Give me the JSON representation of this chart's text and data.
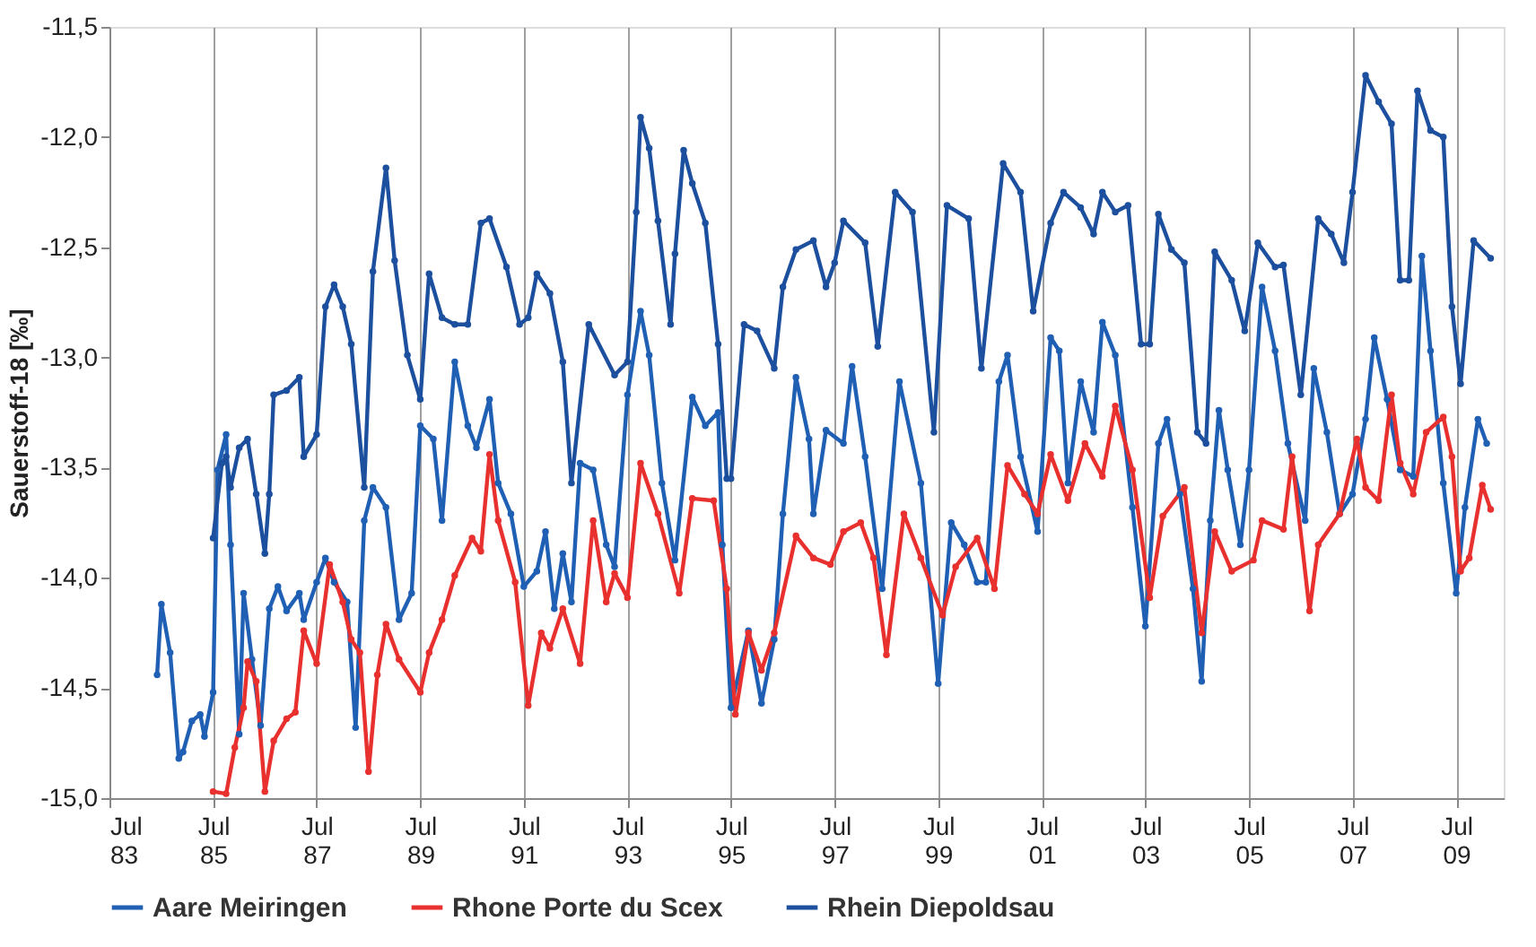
{
  "chart_data": {
    "type": "line",
    "ylabel": "Sauerstoff-18 [‰]",
    "xlim": [
      "1983-07",
      "2010-06"
    ],
    "ylim": [
      -15.0,
      -11.5
    ],
    "xticks": [
      {
        "value": "1983-07",
        "label": "Jul 83"
      },
      {
        "value": "1985-07",
        "label": "Jul 85"
      },
      {
        "value": "1987-07",
        "label": "Jul 87"
      },
      {
        "value": "1989-07",
        "label": "Jul 89"
      },
      {
        "value": "1991-07",
        "label": "Jul 91"
      },
      {
        "value": "1993-07",
        "label": "Jul 93"
      },
      {
        "value": "1995-07",
        "label": "Jul 95"
      },
      {
        "value": "1997-07",
        "label": "Jul 97"
      },
      {
        "value": "1999-07",
        "label": "Jul 99"
      },
      {
        "value": "2001-07",
        "label": "Jul 01"
      },
      {
        "value": "2003-07",
        "label": "Jul 03"
      },
      {
        "value": "2005-07",
        "label": "Jul 05"
      },
      {
        "value": "2007-07",
        "label": "Jul 07"
      },
      {
        "value": "2009-07",
        "label": "Jul 09"
      }
    ],
    "yticks": [
      {
        "value": -15.0,
        "label": "-15,0"
      },
      {
        "value": -14.5,
        "label": "-14,5"
      },
      {
        "value": -14.0,
        "label": "-14,0"
      },
      {
        "value": -13.5,
        "label": "-13,5"
      },
      {
        "value": -13.0,
        "label": "-13,0"
      },
      {
        "value": -12.5,
        "label": "-12,5"
      },
      {
        "value": -12.0,
        "label": "-12,0"
      },
      {
        "value": -11.5,
        "label": "-11,5"
      }
    ],
    "grid": "x",
    "legend": "bottom",
    "marker": "circle",
    "line_style": "solid",
    "series": [
      {
        "name": "Aare Meiringen",
        "color": "#1f5fb4",
        "x": [
          "1984-06",
          "1984-07",
          "1984-09",
          "1984-11",
          "1984-12",
          "1985-02",
          "1985-04",
          "1985-05",
          "1985-07",
          "1985-08",
          "1985-10",
          "1985-11",
          "1986-01",
          "1986-02",
          "1986-04",
          "1986-06",
          "1986-08",
          "1986-10",
          "1986-12",
          "1987-03",
          "1987-04",
          "1987-07",
          "1987-09",
          "1987-11",
          "1988-02",
          "1988-04",
          "1988-06",
          "1988-08",
          "1988-11",
          "1989-02",
          "1989-05",
          "1989-07",
          "1989-10",
          "1989-12",
          "1990-03",
          "1990-06",
          "1990-08",
          "1990-11",
          "1991-01",
          "1991-04",
          "1991-07",
          "1991-10",
          "1991-12",
          "1992-02",
          "1992-04",
          "1992-06",
          "1992-08",
          "1992-11",
          "1993-02",
          "1993-04",
          "1993-07",
          "1993-10",
          "1993-12",
          "1994-03",
          "1994-06",
          "1994-10",
          "1995-01",
          "1995-04",
          "1995-05",
          "1995-07",
          "1995-11",
          "1996-02",
          "1996-05",
          "1996-07",
          "1996-10",
          "1997-01",
          "1997-02",
          "1997-05",
          "1997-09",
          "1997-11",
          "1998-02",
          "1998-06",
          "1998-10",
          "1999-03",
          "1999-07",
          "1999-10",
          "2000-01",
          "2000-04",
          "2000-06",
          "2000-09",
          "2000-11",
          "2001-02",
          "2001-06",
          "2001-09",
          "2001-11",
          "2002-01",
          "2002-04",
          "2002-07",
          "2002-09",
          "2002-12",
          "2003-04",
          "2003-07",
          "2003-10",
          "2003-12",
          "2004-03",
          "2004-06",
          "2004-08",
          "2004-10",
          "2004-12",
          "2005-02",
          "2005-05",
          "2005-07",
          "2005-10",
          "2006-01",
          "2006-04",
          "2006-08",
          "2006-10",
          "2007-01",
          "2007-04",
          "2007-07",
          "2007-10",
          "2007-12",
          "2008-03",
          "2008-06",
          "2008-09",
          "2008-11",
          "2009-01",
          "2009-04",
          "2009-07",
          "2009-09",
          "2009-12",
          "2010-02"
        ],
        "values": [
          -14.44,
          -14.12,
          -14.34,
          -14.82,
          -14.79,
          -14.65,
          -14.62,
          -14.72,
          -14.52,
          -13.51,
          -13.35,
          -13.85,
          -14.71,
          -14.07,
          -14.37,
          -14.67,
          -14.14,
          -14.04,
          -14.15,
          -14.07,
          -14.19,
          -14.02,
          -13.91,
          -14.02,
          -14.11,
          -14.68,
          -13.74,
          -13.59,
          -13.68,
          -14.19,
          -14.07,
          -13.31,
          -13.37,
          -13.74,
          -13.02,
          -13.31,
          -13.41,
          -13.19,
          -13.57,
          -13.71,
          -14.04,
          -13.97,
          -13.79,
          -14.14,
          -13.89,
          -14.11,
          -13.48,
          -13.51,
          -13.85,
          -13.95,
          -13.17,
          -12.79,
          -12.99,
          -13.57,
          -13.92,
          -13.18,
          -13.31,
          -13.25,
          -13.85,
          -14.59,
          -14.24,
          -14.57,
          -14.28,
          -13.71,
          -13.09,
          -13.37,
          -13.71,
          -13.33,
          -13.39,
          -13.04,
          -13.45,
          -14.05,
          -13.11,
          -13.57,
          -14.48,
          -13.75,
          -13.85,
          -14.02,
          -14.02,
          -13.11,
          -12.99,
          -13.45,
          -13.79,
          -12.91,
          -12.97,
          -13.57,
          -13.11,
          -13.34,
          -12.84,
          -12.99,
          -13.68,
          -14.22,
          -13.39,
          -13.28,
          -13.62,
          -14.05,
          -14.47,
          -13.74,
          -13.24,
          -13.51,
          -13.85,
          -13.51,
          -12.68,
          -12.97,
          -13.39,
          -13.74,
          -13.05,
          -13.34,
          -13.71,
          -13.62,
          -13.28,
          -12.91,
          -13.19,
          -13.51,
          -13.54,
          -12.54,
          -12.97,
          -13.57,
          -14.07,
          -13.68,
          -13.28,
          -13.39
        ]
      },
      {
        "name": "Rhone Porte du Scex",
        "color": "#e8302e",
        "x": [
          "1985-07",
          "1985-10",
          "1985-12",
          "1986-02",
          "1986-03",
          "1986-05",
          "1986-07",
          "1986-09",
          "1986-12",
          "1987-02",
          "1987-04",
          "1987-07",
          "1987-10",
          "1988-01",
          "1988-03",
          "1988-05",
          "1988-07",
          "1988-09",
          "1988-11",
          "1989-02",
          "1989-07",
          "1989-09",
          "1989-12",
          "1990-03",
          "1990-07",
          "1990-09",
          "1990-11",
          "1991-01",
          "1991-05",
          "1991-08",
          "1991-11",
          "1992-01",
          "1992-04",
          "1992-08",
          "1992-11",
          "1993-02",
          "1993-04",
          "1993-07",
          "1993-10",
          "1994-02",
          "1994-07",
          "1994-10",
          "1995-03",
          "1995-06",
          "1995-08",
          "1995-11",
          "1996-02",
          "1996-05",
          "1996-10",
          "1997-02",
          "1997-06",
          "1997-09",
          "1998-01",
          "1998-04",
          "1998-07",
          "1998-11",
          "1999-03",
          "1999-08",
          "1999-11",
          "2000-04",
          "2000-08",
          "2000-11",
          "2001-03",
          "2001-06",
          "2001-09",
          "2002-01",
          "2002-05",
          "2002-09",
          "2002-12",
          "2003-04",
          "2003-08",
          "2003-11",
          "2004-04",
          "2004-08",
          "2004-11",
          "2005-03",
          "2005-08",
          "2005-10",
          "2006-03",
          "2006-05",
          "2006-09",
          "2006-11",
          "2007-04",
          "2007-08",
          "2007-10",
          "2008-01",
          "2008-04",
          "2008-06",
          "2008-09",
          "2008-12",
          "2009-04",
          "2009-06",
          "2009-08",
          "2009-10",
          "2010-01",
          "2010-03"
        ],
        "values": [
          -14.97,
          -14.98,
          -14.77,
          -14.59,
          -14.38,
          -14.47,
          -14.97,
          -14.74,
          -14.64,
          -14.61,
          -14.24,
          -14.39,
          -13.94,
          -14.11,
          -14.28,
          -14.34,
          -14.88,
          -14.44,
          -14.21,
          -14.37,
          -14.52,
          -14.34,
          -14.19,
          -13.99,
          -13.82,
          -13.88,
          -13.44,
          -13.74,
          -14.02,
          -14.58,
          -14.25,
          -14.32,
          -14.14,
          -14.39,
          -13.74,
          -14.11,
          -13.98,
          -14.09,
          -13.48,
          -13.71,
          -14.07,
          -13.64,
          -13.65,
          -14.05,
          -14.62,
          -14.25,
          -14.42,
          -14.25,
          -13.81,
          -13.91,
          -13.94,
          -13.79,
          -13.75,
          -13.91,
          -14.35,
          -13.71,
          -13.91,
          -14.17,
          -13.95,
          -13.82,
          -14.05,
          -13.49,
          -13.62,
          -13.71,
          -13.44,
          -13.65,
          -13.39,
          -13.54,
          -13.22,
          -13.51,
          -14.09,
          -13.72,
          -13.59,
          -14.25,
          -13.79,
          -13.97,
          -13.92,
          -13.74,
          -13.78,
          -13.45,
          -14.15,
          -13.85,
          -13.71,
          -13.37,
          -13.59,
          -13.65,
          -13.17,
          -13.48,
          -13.62,
          -13.34,
          -13.27,
          -13.45,
          -13.97,
          -13.91,
          -13.58,
          -13.69
        ]
      },
      {
        "name": "Rhein Diepoldsau",
        "color": "#1c4f9e",
        "x": [
          "1985-07",
          "1985-09",
          "1985-10",
          "1985-11",
          "1986-01",
          "1986-03",
          "1986-05",
          "1986-07",
          "1986-08",
          "1986-09",
          "1986-12",
          "1987-03",
          "1987-04",
          "1987-07",
          "1987-09",
          "1987-11",
          "1988-01",
          "1988-03",
          "1988-06",
          "1988-08",
          "1988-11",
          "1989-01",
          "1989-04",
          "1989-07",
          "1989-09",
          "1989-12",
          "1990-03",
          "1990-06",
          "1990-09",
          "1990-11",
          "1991-03",
          "1991-06",
          "1991-08",
          "1991-10",
          "1992-01",
          "1992-04",
          "1992-06",
          "1992-10",
          "1993-04",
          "1993-07",
          "1993-09",
          "1993-10",
          "1993-12",
          "1994-02",
          "1994-05",
          "1994-06",
          "1994-08",
          "1994-10",
          "1995-01",
          "1995-04",
          "1995-06",
          "1995-07",
          "1995-10",
          "1996-01",
          "1996-05",
          "1996-07",
          "1996-10",
          "1997-02",
          "1997-05",
          "1997-07",
          "1997-09",
          "1998-02",
          "1998-05",
          "1998-09",
          "1999-01",
          "1999-06",
          "1999-09",
          "2000-02",
          "2000-05",
          "2000-10",
          "2001-02",
          "2001-05",
          "2001-09",
          "2001-12",
          "2002-04",
          "2002-07",
          "2002-09",
          "2002-12",
          "2003-03",
          "2003-06",
          "2003-08",
          "2003-10",
          "2004-01",
          "2004-04",
          "2004-07",
          "2004-09",
          "2004-11",
          "2005-03",
          "2005-06",
          "2005-09",
          "2006-01",
          "2006-03",
          "2006-07",
          "2006-11",
          "2007-02",
          "2007-05",
          "2007-07",
          "2007-10",
          "2008-01",
          "2008-04",
          "2008-06",
          "2008-08",
          "2008-10",
          "2009-01",
          "2009-04",
          "2009-06",
          "2009-08",
          "2009-11",
          "2010-03"
        ],
        "values": [
          -13.82,
          -13.48,
          -13.45,
          -13.59,
          -13.41,
          -13.37,
          -13.62,
          -13.89,
          -13.62,
          -13.17,
          -13.15,
          -13.09,
          -13.45,
          -13.35,
          -12.77,
          -12.67,
          -12.77,
          -12.94,
          -13.59,
          -12.61,
          -12.14,
          -12.56,
          -12.99,
          -13.19,
          -12.62,
          -12.82,
          -12.85,
          -12.85,
          -12.39,
          -12.37,
          -12.59,
          -12.85,
          -12.82,
          -12.62,
          -12.71,
          -13.02,
          -13.57,
          -12.85,
          -13.08,
          -13.02,
          -12.34,
          -11.91,
          -12.05,
          -12.38,
          -12.85,
          -12.53,
          -12.06,
          -12.21,
          -12.39,
          -12.94,
          -13.55,
          -13.55,
          -12.85,
          -12.88,
          -13.05,
          -12.68,
          -12.51,
          -12.47,
          -12.68,
          -12.57,
          -12.38,
          -12.48,
          -12.95,
          -12.25,
          -12.34,
          -13.34,
          -12.31,
          -12.37,
          -13.05,
          -12.12,
          -12.25,
          -12.79,
          -12.39,
          -12.25,
          -12.32,
          -12.44,
          -12.25,
          -12.34,
          -12.31,
          -12.94,
          -12.94,
          -12.35,
          -12.51,
          -12.57,
          -13.34,
          -13.39,
          -12.52,
          -12.65,
          -12.88,
          -12.48,
          -12.59,
          -12.58,
          -13.17,
          -12.37,
          -12.44,
          -12.57,
          -12.25,
          -11.72,
          -11.84,
          -11.94,
          -12.65,
          -12.65,
          -11.79,
          -11.97,
          -12.0,
          -12.77,
          -13.12,
          -12.47,
          -12.55
        ]
      }
    ]
  }
}
